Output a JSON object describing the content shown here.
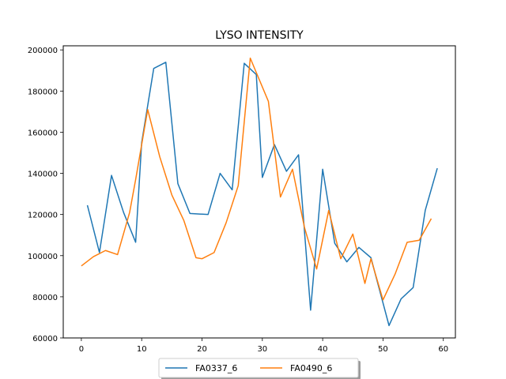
{
  "chart_data": {
    "type": "line",
    "title": "LYSO INTENSITY",
    "xlabel": "",
    "ylabel": "",
    "xlim": [
      -3,
      62
    ],
    "ylim": [
      60000,
      202000
    ],
    "xticks": [
      0,
      10,
      20,
      30,
      40,
      50,
      60
    ],
    "yticks": [
      60000,
      80000,
      100000,
      120000,
      140000,
      160000,
      180000,
      200000
    ],
    "grid": false,
    "legend_position": "bottom-center",
    "series": [
      {
        "name": "FA0337_6",
        "color": "#1f77b4",
        "x": [
          1,
          3,
          5,
          7,
          9,
          10,
          12,
          14,
          16,
          18,
          21,
          23,
          25,
          27,
          29,
          30,
          32,
          34,
          36,
          38,
          40,
          42,
          44,
          46,
          48,
          51,
          53,
          55,
          57,
          59
        ],
        "y": [
          124500,
          101500,
          139000,
          121000,
          106500,
          155000,
          191000,
          194000,
          135000,
          120500,
          120000,
          140000,
          132000,
          193500,
          188000,
          138000,
          154000,
          141000,
          149000,
          73500,
          142000,
          106000,
          97000,
          104000,
          99000,
          66000,
          79000,
          84500,
          122000,
          142500
        ]
      },
      {
        "name": "FA0490_6",
        "color": "#ff7f0e",
        "x": [
          0,
          2,
          4,
          6,
          8,
          9,
          11,
          13,
          15,
          17,
          19,
          20,
          22,
          24,
          26,
          28,
          29,
          31,
          33,
          35,
          37,
          39,
          41,
          43,
          45,
          47,
          48,
          50,
          52,
          54,
          56,
          58
        ],
        "y": [
          95000,
          99500,
          102500,
          100500,
          121000,
          137000,
          171000,
          148000,
          129500,
          117000,
          99000,
          98500,
          101500,
          116000,
          134000,
          196000,
          189000,
          175000,
          128500,
          142000,
          113500,
          93500,
          122000,
          98500,
          110500,
          86500,
          98500,
          78500,
          91000,
          106500,
          107500,
          118000
        ]
      }
    ]
  }
}
